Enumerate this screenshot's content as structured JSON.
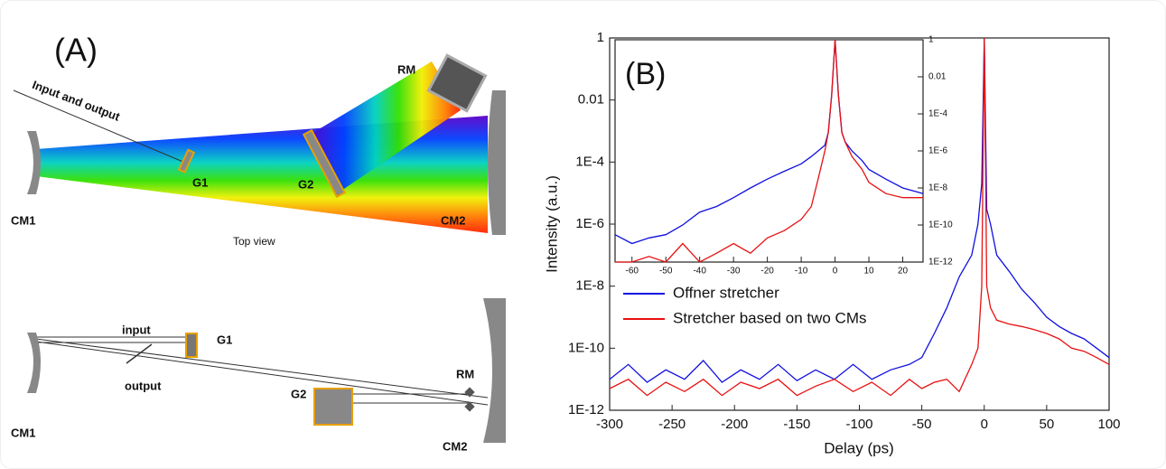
{
  "panel_a": {
    "label": "(A)",
    "top_view": {
      "caption": "Top view",
      "input_output": "Input and output",
      "rm": "RM",
      "g1": "G1",
      "g2": "G2",
      "cm1": "CM1",
      "cm2": "CM2"
    },
    "side_view": {
      "input": "input",
      "output": "output",
      "g1": "G1",
      "rm": "RM",
      "g2": "G2",
      "cm1": "CM1",
      "cm2": "CM2"
    }
  },
  "chart_data": [
    {
      "type": "line",
      "panel_label": "(B)",
      "x_label": "Delay (ps)",
      "y_label": "Intensity (a.u.)",
      "log_y": true,
      "legend": "lower-left",
      "xlim": [
        -300,
        100
      ],
      "xticks": [
        -300,
        -250,
        -200,
        -150,
        -100,
        -50,
        0,
        50,
        100
      ],
      "ylim": [
        1e-12,
        1
      ],
      "yticks": [
        {
          "value": 1e-12,
          "label": "1E-12"
        },
        {
          "value": 1e-10,
          "label": "1E-10"
        },
        {
          "value": 1e-08,
          "label": "1E-8"
        },
        {
          "value": 1e-06,
          "label": "1E-6"
        },
        {
          "value": 0.0001,
          "label": "1E-4"
        },
        0.01,
        1
      ],
      "x": [
        -300,
        -285,
        -270,
        -255,
        -240,
        -225,
        -210,
        -195,
        -180,
        -165,
        -150,
        -135,
        -120,
        -105,
        -90,
        -75,
        -60,
        -50,
        -40,
        -30,
        -20,
        -10,
        -5,
        -2,
        0,
        2,
        5,
        10,
        20,
        30,
        40,
        50,
        60,
        70,
        80,
        90,
        100
      ],
      "series": [
        {
          "name": "Offner stretcher",
          "color": "#1010e0",
          "values": [
            1e-11,
            3e-11,
            8e-12,
            2e-11,
            1e-11,
            4e-11,
            8e-12,
            2e-11,
            1e-11,
            3e-11,
            9e-12,
            2e-11,
            1e-11,
            3e-11,
            1e-11,
            2e-11,
            3e-11,
            5e-11,
            3e-10,
            2e-09,
            2e-08,
            1e-07,
            1e-06,
            2e-05,
            1,
            3e-06,
            1e-06,
            1e-07,
            3e-08,
            8e-09,
            3e-09,
            1e-09,
            5e-10,
            3e-10,
            2e-10,
            1e-10,
            5e-11
          ]
        },
        {
          "name": "Stretcher based on two CMs",
          "color": "#e81010",
          "values": [
            5e-12,
            1e-11,
            3e-12,
            8e-12,
            4e-12,
            1e-11,
            3e-12,
            8e-12,
            5e-12,
            1e-11,
            3e-12,
            6e-12,
            1e-11,
            4e-12,
            8e-12,
            3e-12,
            1e-11,
            5e-12,
            8e-12,
            1e-11,
            4e-12,
            3e-11,
            1e-10,
            1e-08,
            1,
            1e-08,
            2e-09,
            8e-10,
            6e-10,
            5e-10,
            4e-10,
            3e-10,
            2e-10,
            1e-10,
            8e-11,
            5e-11,
            3e-11
          ]
        }
      ]
    },
    {
      "type": "line",
      "log_y": true,
      "xlim": [
        -65,
        26
      ],
      "xticks": [
        -60,
        -50,
        -40,
        -30,
        -20,
        -10,
        0,
        10,
        20
      ],
      "ylim": [
        1e-12,
        1
      ],
      "yticks": [
        1,
        0.01,
        {
          "value": 0.0001,
          "label": "1E-4"
        },
        {
          "value": 1e-06,
          "label": "1E-6"
        },
        {
          "value": 1e-08,
          "label": "1E-8"
        },
        {
          "value": 1e-10,
          "label": "1E-10"
        },
        {
          "value": 1e-12,
          "label": "1E-12"
        }
      ],
      "x": [
        -65,
        -60,
        -55,
        -50,
        -45,
        -40,
        -35,
        -30,
        -25,
        -20,
        -15,
        -10,
        -7,
        -5,
        -3,
        -2,
        -1,
        0,
        1,
        2,
        3,
        5,
        8,
        10,
        15,
        20,
        26
      ],
      "series": [
        {
          "color": "#1010e0",
          "values": [
            3e-11,
            1e-11,
            2e-11,
            3e-11,
            1e-10,
            5e-10,
            1e-09,
            3e-09,
            1e-08,
            3e-08,
            8e-08,
            2e-07,
            5e-07,
            1e-06,
            2e-06,
            1e-05,
            0.001,
            1,
            0.001,
            1e-05,
            3e-06,
            1e-06,
            3e-07,
            1e-07,
            3e-08,
            1e-08,
            5e-09
          ]
        },
        {
          "color": "#e81010",
          "values": [
            1e-12,
            1e-12,
            2e-12,
            1e-12,
            1e-11,
            1e-12,
            3e-12,
            1e-11,
            3e-12,
            2e-11,
            5e-11,
            2e-10,
            1e-09,
            3e-08,
            1e-06,
            1e-05,
            0.001,
            1,
            0.001,
            1e-05,
            3e-06,
            5e-07,
            1e-07,
            2e-08,
            5e-09,
            3e-09,
            3e-09
          ]
        }
      ]
    }
  ]
}
